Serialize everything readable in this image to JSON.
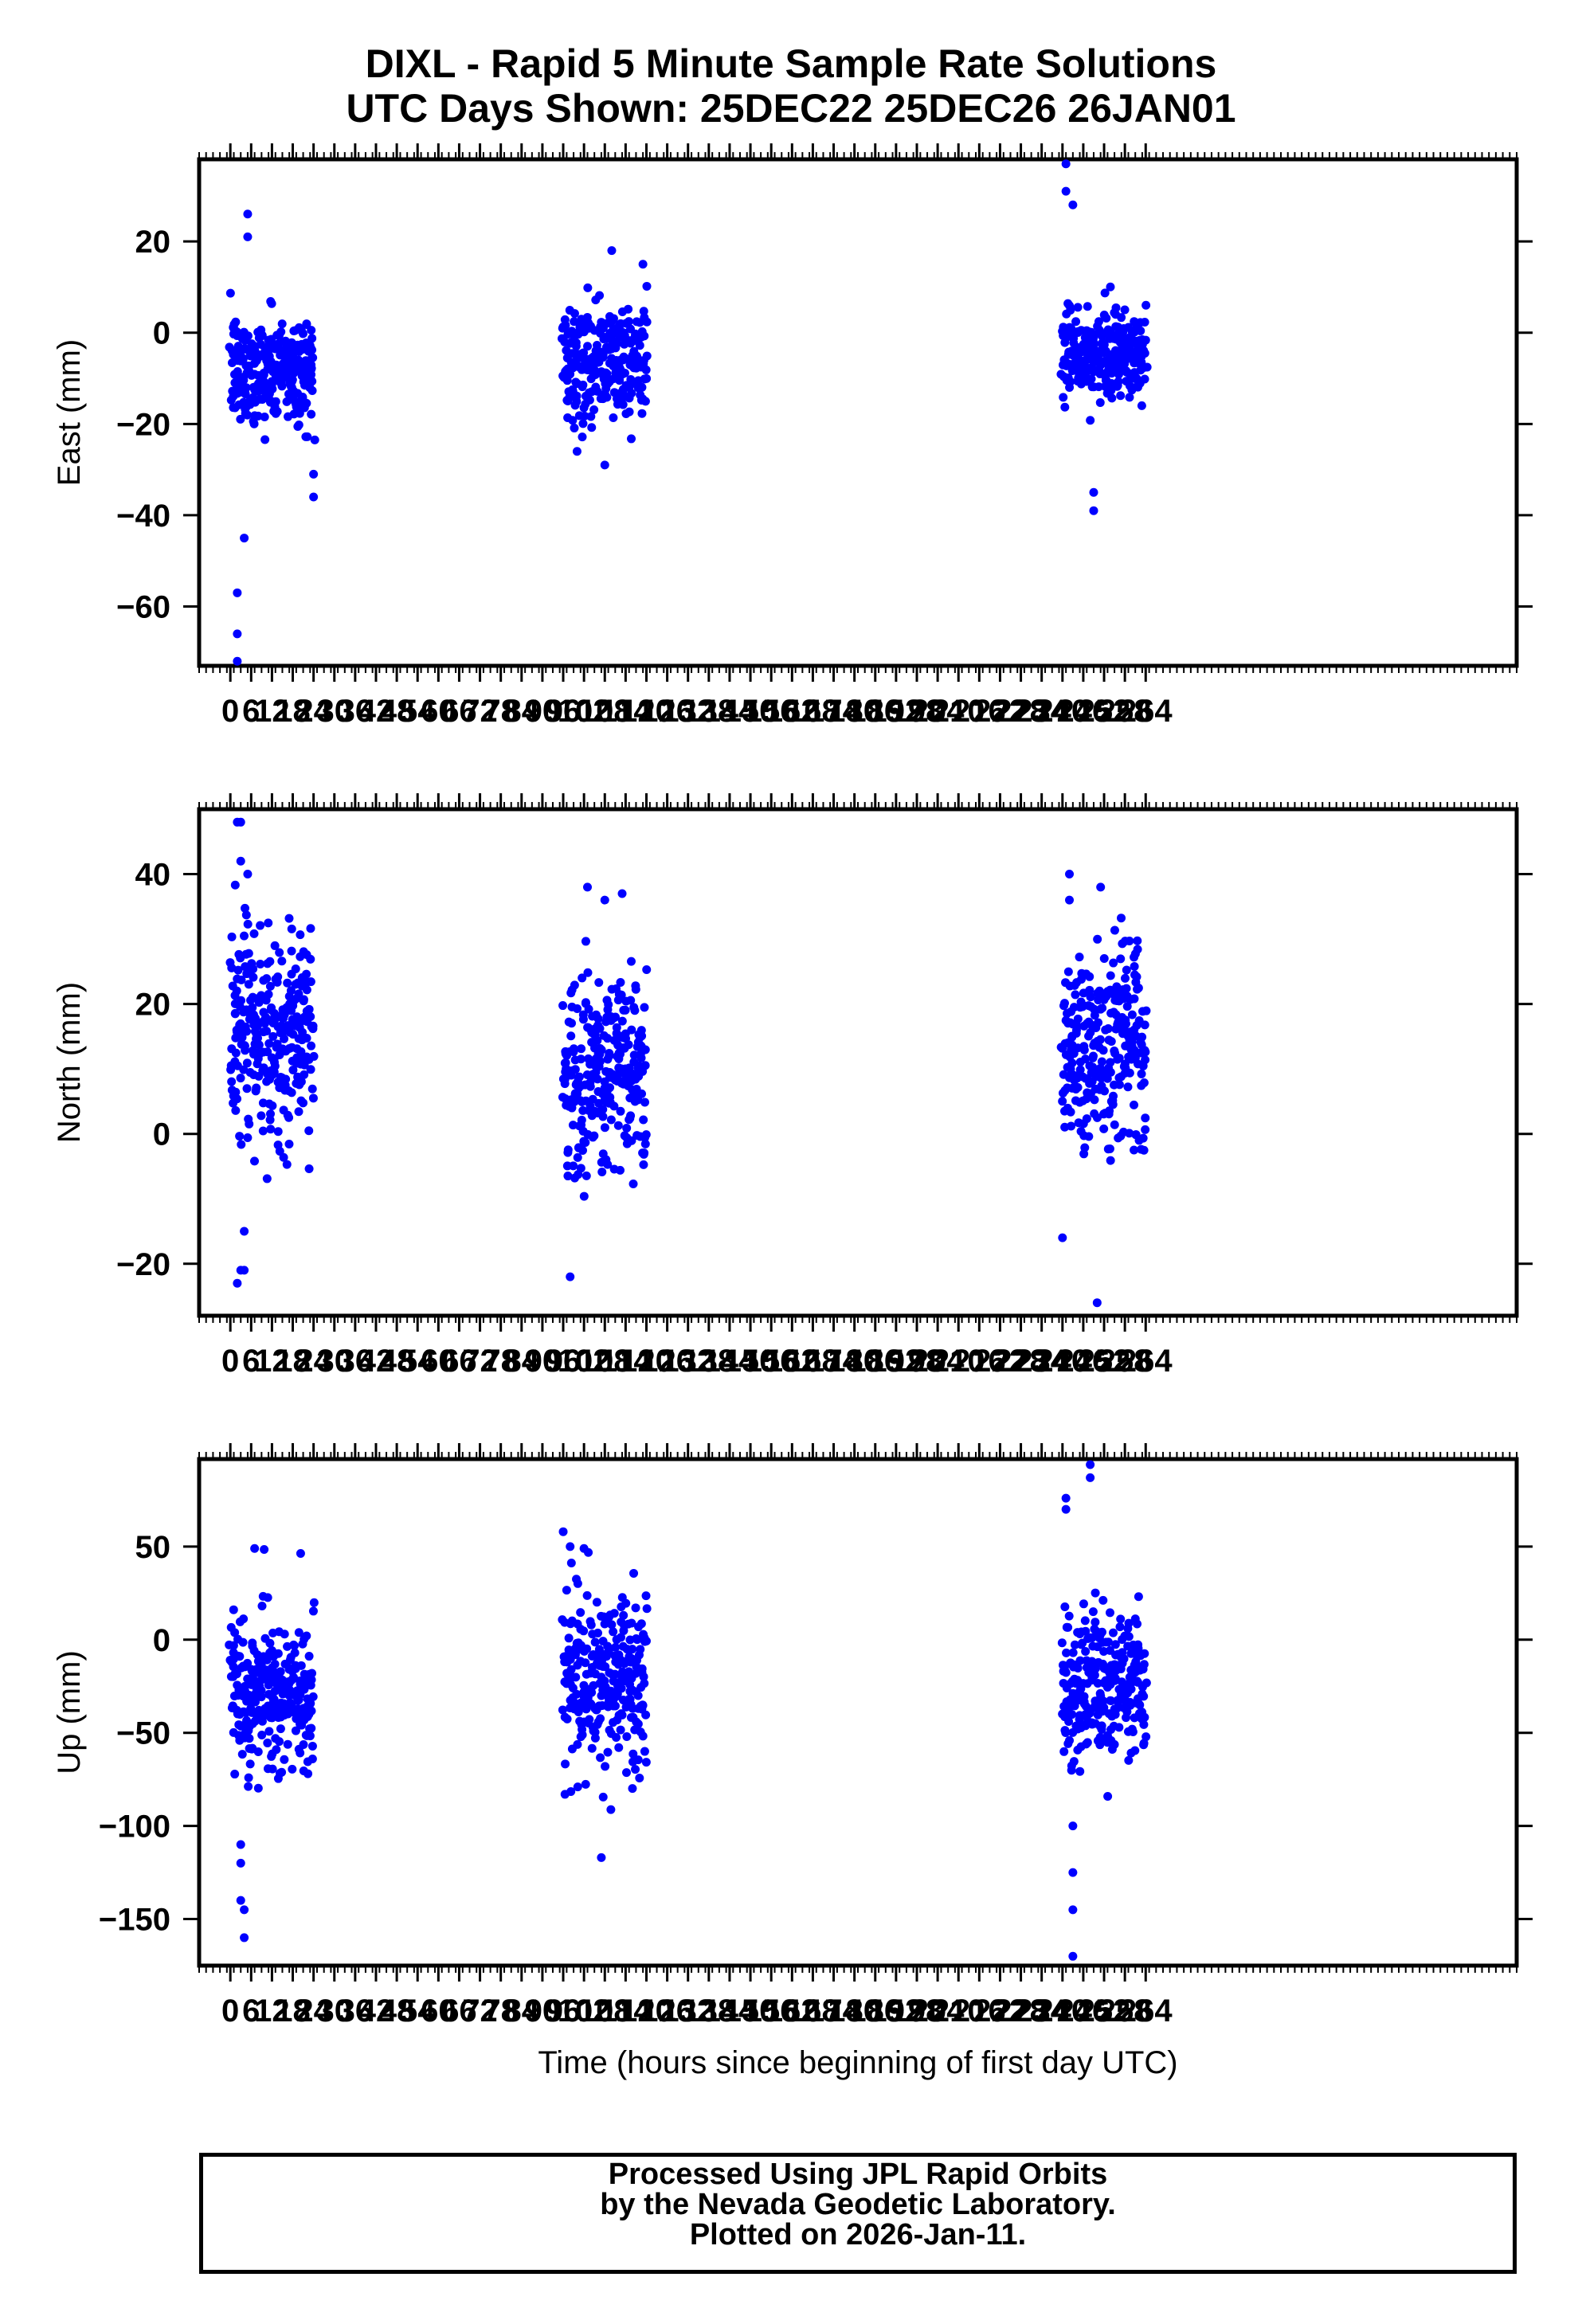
{
  "title_line1": "DIXL - Rapid 5 Minute Sample Rate Solutions",
  "title_line2": "UTC Days Shown:  25DEC22 25DEC26 26JAN01",
  "xlabel": "Time (hours since beginning of first day UTC)",
  "footer": {
    "line1": "Processed Using JPL Rapid Orbits",
    "line2": "by the Nevada Geodetic Laboratory.",
    "line3": "Plotted on 2026-Jan-11."
  },
  "colors": {
    "points": "#0000ff",
    "axes": "#000000",
    "background": "#ffffff"
  },
  "chart_data": [
    {
      "type": "scatter",
      "title": "",
      "xlabel": "",
      "ylabel": "East (mm)",
      "xlim": [
        -9,
        371
      ],
      "ylim": [
        -73,
        38
      ],
      "yticks": [
        20,
        0,
        -20,
        -40,
        -60
      ],
      "xticks": [
        0,
        6,
        12,
        18,
        24,
        30,
        36,
        42,
        48,
        54,
        60,
        66,
        72,
        78,
        84,
        90,
        96,
        102,
        108,
        114,
        120,
        126,
        132,
        138,
        144,
        150,
        156,
        162,
        168,
        174,
        180,
        186,
        192,
        198,
        204,
        210,
        216,
        222,
        228,
        234,
        240,
        246,
        252,
        258,
        264
      ],
      "grid": false,
      "series": [
        {
          "segments": [
            {
              "x_range": [
                0,
                24
              ],
              "center": -8,
              "spread": 6,
              "points": 280
            },
            {
              "x_range": [
                96,
                120
              ],
              "center": -6,
              "spread": 6,
              "points": 280
            },
            {
              "x_range": [
                240,
                264
              ],
              "center": -5,
              "spread": 5,
              "points": 280
            }
          ],
          "outliers": [
            [
              5,
              26
            ],
            [
              5,
              21
            ],
            [
              2,
              -57
            ],
            [
              2,
              -66
            ],
            [
              2,
              -72
            ],
            [
              4,
              -45
            ],
            [
              241,
              37
            ],
            [
              241,
              31
            ],
            [
              243,
              28
            ],
            [
              249,
              -39
            ],
            [
              249,
              -35
            ],
            [
              24,
              -36
            ],
            [
              24,
              -31
            ],
            [
              110,
              18
            ],
            [
              119,
              15
            ],
            [
              108,
              -29
            ],
            [
              100,
              -26
            ]
          ]
        }
      ]
    },
    {
      "type": "scatter",
      "title": "",
      "xlabel": "",
      "ylabel": "North (mm)",
      "xlim": [
        -9,
        371
      ],
      "ylim": [
        -28,
        50
      ],
      "yticks": [
        40,
        20,
        0,
        -20
      ],
      "xticks": [
        0,
        6,
        12,
        18,
        24,
        30,
        36,
        42,
        48,
        54,
        60,
        66,
        72,
        78,
        84,
        90,
        96,
        102,
        108,
        114,
        120,
        126,
        132,
        138,
        144,
        150,
        156,
        162,
        168,
        174,
        180,
        186,
        192,
        198,
        204,
        210,
        216,
        222,
        228,
        234,
        240,
        246,
        252,
        258,
        264
      ],
      "grid": false,
      "series": [
        {
          "segments": [
            {
              "x_range": [
                0,
                24
              ],
              "center": 15,
              "spread": 8,
              "points": 280
            },
            {
              "x_range": [
                96,
                120
              ],
              "center": 10,
              "spread": 8,
              "points": 280
            },
            {
              "x_range": [
                240,
                264
              ],
              "center": 14,
              "spread": 8,
              "points": 280
            }
          ],
          "outliers": [
            [
              2,
              48
            ],
            [
              3,
              48
            ],
            [
              3,
              42
            ],
            [
              5,
              40
            ],
            [
              2,
              -23
            ],
            [
              3,
              -21
            ],
            [
              4,
              -21
            ],
            [
              4,
              -15
            ],
            [
              98,
              -22
            ],
            [
              103,
              38
            ],
            [
              108,
              36
            ],
            [
              113,
              37
            ],
            [
              242,
              40
            ],
            [
              242,
              36
            ],
            [
              250,
              -26
            ],
            [
              240,
              -16
            ],
            [
              251,
              38
            ]
          ]
        }
      ]
    },
    {
      "type": "scatter",
      "title": "",
      "xlabel": "Time (hours since beginning of first day UTC)",
      "ylabel": "Up (mm)",
      "xlim": [
        -9,
        371
      ],
      "ylim": [
        -175,
        97
      ],
      "yticks": [
        50,
        0,
        -50,
        -100,
        -150
      ],
      "xticks": [
        0,
        6,
        12,
        18,
        24,
        30,
        36,
        42,
        48,
        54,
        60,
        66,
        72,
        78,
        84,
        90,
        96,
        102,
        108,
        114,
        120,
        126,
        132,
        138,
        144,
        150,
        156,
        162,
        168,
        174,
        180,
        186,
        192,
        198,
        204,
        210,
        216,
        222,
        228,
        234,
        240,
        246,
        252,
        258,
        264
      ],
      "grid": false,
      "series": [
        {
          "segments": [
            {
              "x_range": [
                0,
                24
              ],
              "center": -30,
              "spread": 20,
              "points": 280
            },
            {
              "x_range": [
                96,
                120
              ],
              "center": -25,
              "spread": 25,
              "points": 280
            },
            {
              "x_range": [
                240,
                264
              ],
              "center": -25,
              "spread": 20,
              "points": 280
            }
          ],
          "outliers": [
            [
              4,
              -160
            ],
            [
              4,
              -145
            ],
            [
              3,
              -140
            ],
            [
              3,
              -120
            ],
            [
              3,
              -110
            ],
            [
              7,
              49
            ],
            [
              96,
              58
            ],
            [
              98,
              50
            ],
            [
              102,
              49
            ],
            [
              107,
              -117
            ],
            [
              241,
              76
            ],
            [
              241,
              70
            ],
            [
              248,
              94
            ],
            [
              248,
              87
            ],
            [
              243,
              -170
            ],
            [
              243,
              -145
            ],
            [
              243,
              -125
            ],
            [
              243,
              -100
            ]
          ]
        }
      ]
    }
  ]
}
